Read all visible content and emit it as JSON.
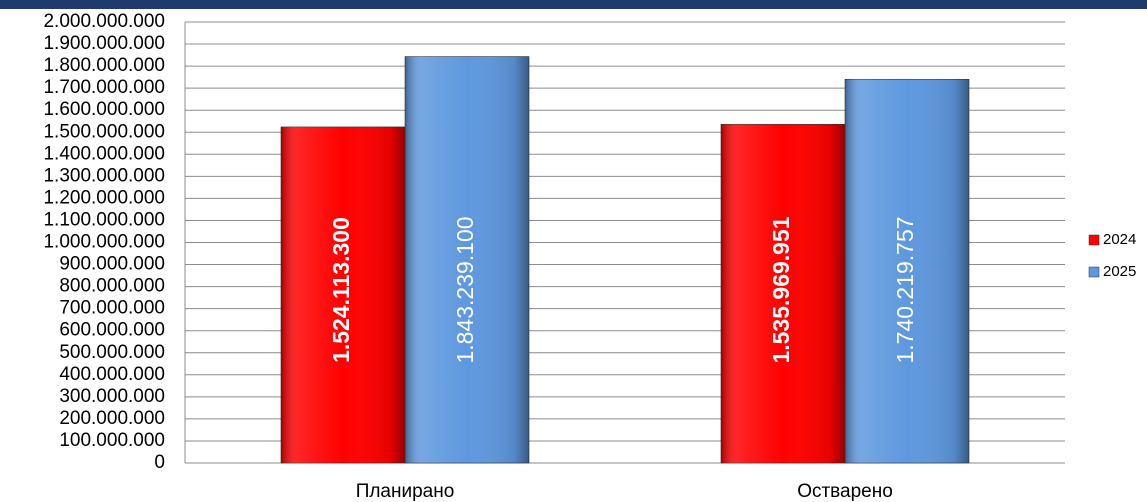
{
  "chart_data": {
    "type": "bar",
    "categories": [
      "Планирано",
      "Остварено"
    ],
    "series": [
      {
        "name": "2024",
        "color": "#ff0000",
        "values": [
          1524113300,
          1535969951
        ],
        "value_labels": [
          "1.524.113.300",
          "1.535.969.951"
        ]
      },
      {
        "name": "2025",
        "color": "#5e98de",
        "values": [
          1843239100,
          1740219757
        ],
        "value_labels": [
          "1.843.239.100",
          "1.740.219.757"
        ]
      }
    ],
    "ylim": [
      0,
      2000000000
    ],
    "yticks": [
      {
        "value": 0,
        "label": "0"
      },
      {
        "value": 100000000,
        "label": "100.000.000"
      },
      {
        "value": 200000000,
        "label": "200.000.000"
      },
      {
        "value": 300000000,
        "label": "300.000.000"
      },
      {
        "value": 400000000,
        "label": "400.000.000"
      },
      {
        "value": 500000000,
        "label": "500.000.000"
      },
      {
        "value": 600000000,
        "label": "600.000.000"
      },
      {
        "value": 700000000,
        "label": "700.000.000"
      },
      {
        "value": 800000000,
        "label": "800.000.000"
      },
      {
        "value": 900000000,
        "label": "900.000.000"
      },
      {
        "value": 1000000000,
        "label": "1.000.000.000"
      },
      {
        "value": 1100000000,
        "label": "1.100.000.000"
      },
      {
        "value": 1200000000,
        "label": "1.200.000.000"
      },
      {
        "value": 1300000000,
        "label": "1.300.000.000"
      },
      {
        "value": 1400000000,
        "label": "1.400.000.000"
      },
      {
        "value": 1500000000,
        "label": "1.500.000.000"
      },
      {
        "value": 1600000000,
        "label": "1.600.000.000"
      },
      {
        "value": 1700000000,
        "label": "1.700.000.000"
      },
      {
        "value": 1800000000,
        "label": "1.800.000.000"
      },
      {
        "value": 1900000000,
        "label": "1.900.000.000"
      },
      {
        "value": 2000000000,
        "label": "2.000.000.000"
      }
    ],
    "grid": true,
    "legend": "right"
  }
}
